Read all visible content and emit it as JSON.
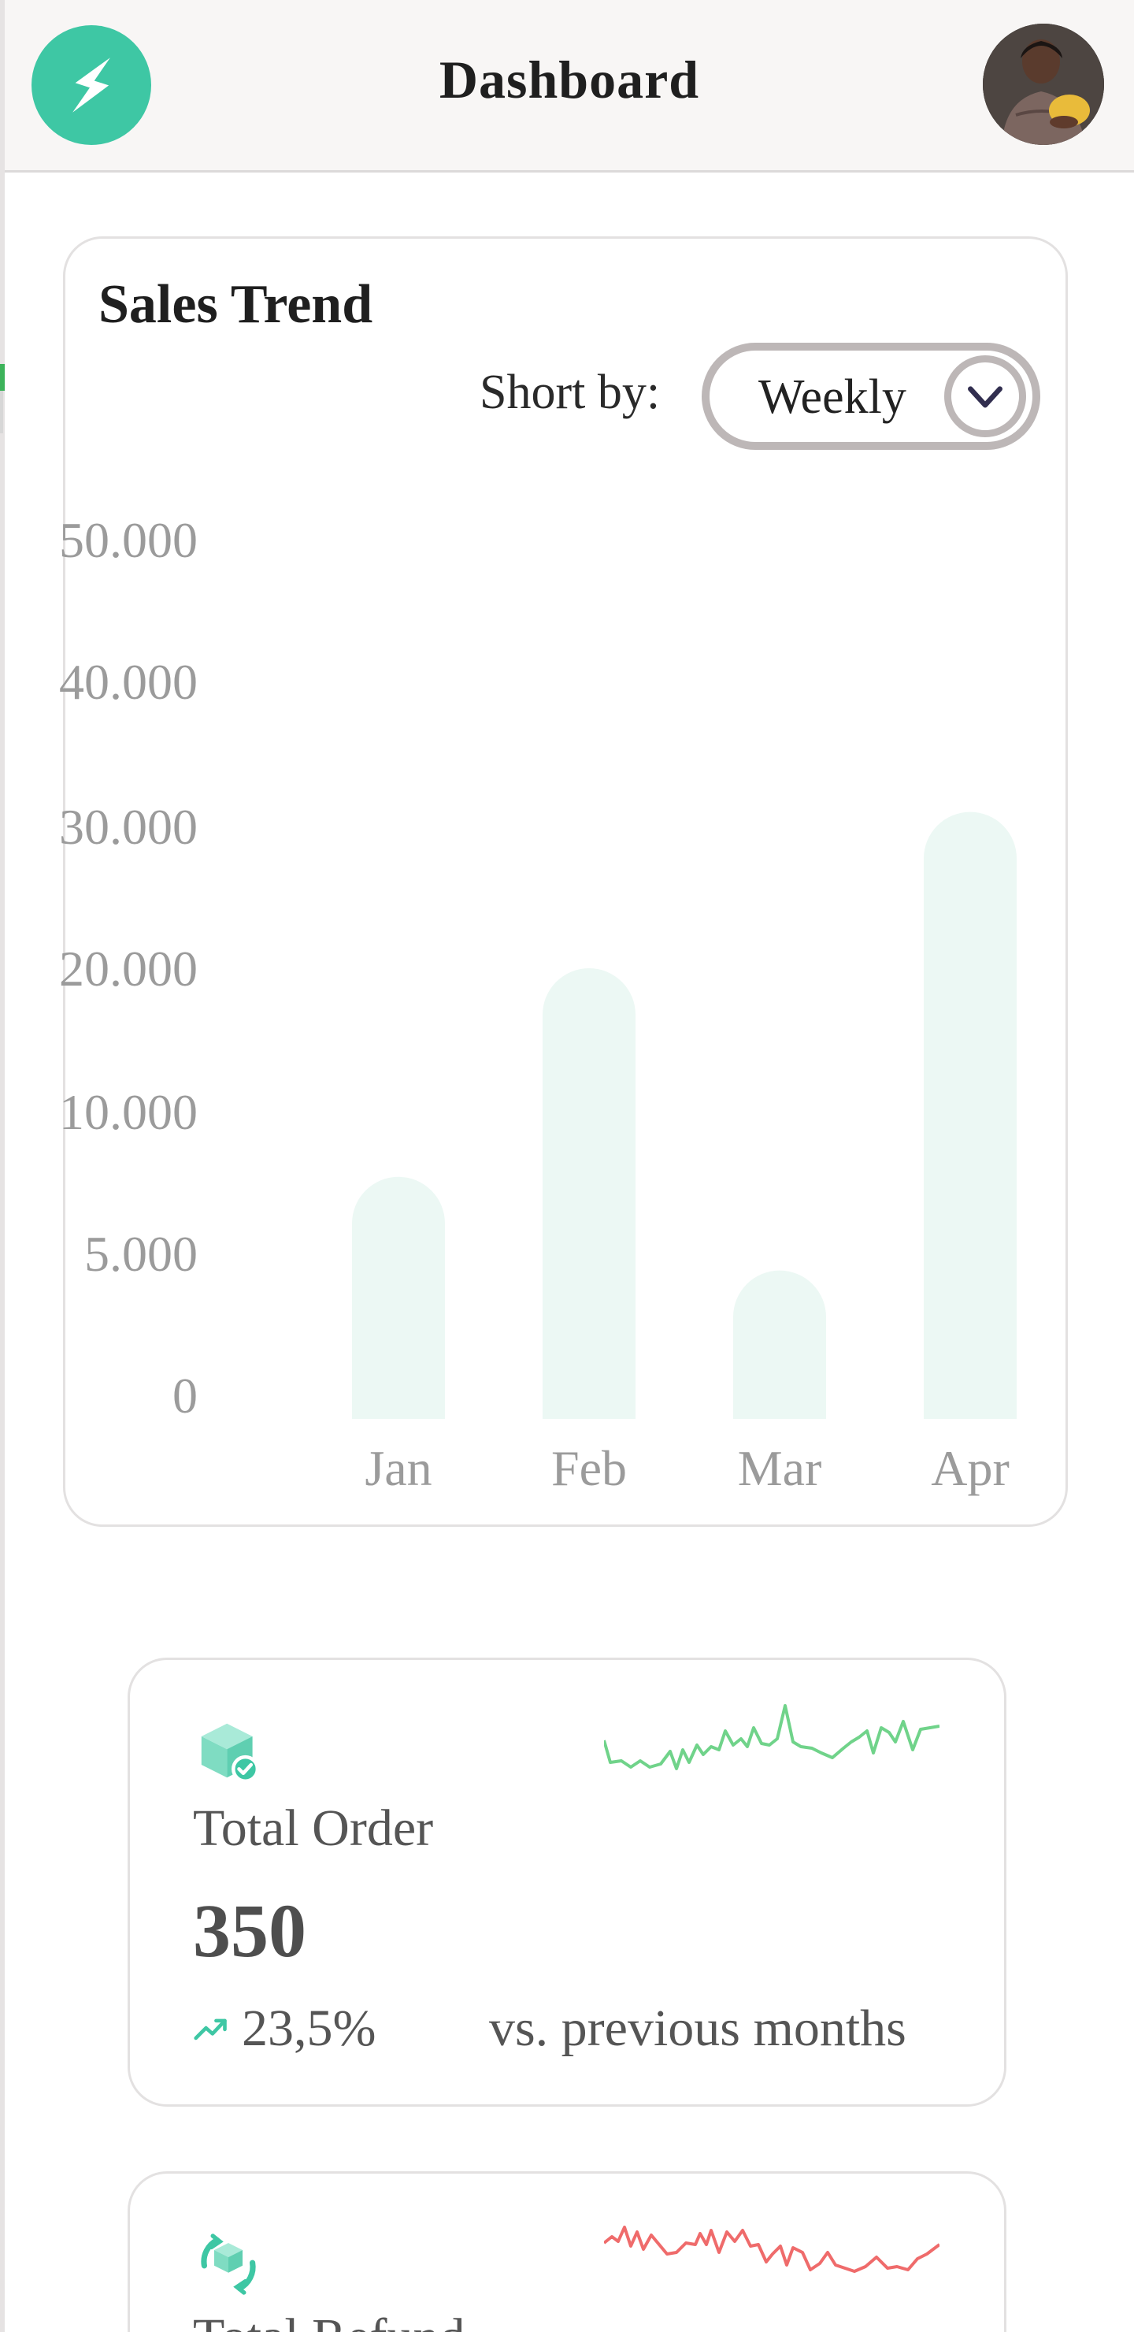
{
  "header": {
    "title": "Dashboard",
    "logo_icon": "lightning-bolt-icon",
    "avatar": "user-avatar"
  },
  "sales_trend": {
    "title": "Sales Trend",
    "sort_label": "Short by:",
    "sort_value": "Weekly",
    "sort_icon": "chevron-down-icon"
  },
  "chart_data": {
    "type": "bar",
    "title": "Sales Trend",
    "categories": [
      "Jan",
      "Feb",
      "Mar",
      "Apr"
    ],
    "values": [
      7700,
      20000,
      4400,
      31000
    ],
    "y_ticks": [
      "0",
      "5.000",
      "10.000",
      "20.000",
      "30.000",
      "40.000",
      "50.000"
    ],
    "y_tick_values": [
      0,
      5000,
      10000,
      20000,
      30000,
      40000,
      50000
    ],
    "xlabel": "",
    "ylabel": "",
    "grid": false,
    "bar_color": "#ecf8f4",
    "label_color": "#9b9b9b"
  },
  "stats": [
    {
      "label": "Total Order",
      "value": "350",
      "change": "23,5%",
      "compare": "vs. previous months",
      "icon": "package-check-icon",
      "trend_icon": "trending-up-icon",
      "sparkline_color": "#70d38a"
    },
    {
      "label": "Total Refund",
      "icon": "refund-cycle-icon",
      "sparkline_color": "#ef6b6b"
    }
  ],
  "colors": {
    "accent": "#3ec7a4",
    "text": "#1f1f1f",
    "muted": "#9b9b9b"
  }
}
